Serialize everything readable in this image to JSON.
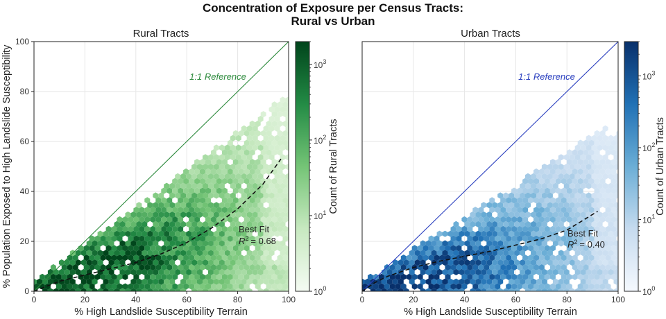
{
  "figure": {
    "title_line1": "Concentration of Exposure per Census Tracts:",
    "title_line2": "Rural vs Urban"
  },
  "chart_data": [
    {
      "type": "heatmap",
      "subtype": "hexbin",
      "title": "Rural Tracts",
      "xlabel": "% High Landslide Susceptibility Terrain",
      "ylabel": "% Population Exposed to High Landslide Susceptibility",
      "xlim": [
        0,
        100
      ],
      "ylim": [
        0,
        100
      ],
      "x_ticks": [
        "0",
        "20",
        "40",
        "60",
        "80",
        "100"
      ],
      "y_ticks": [
        "0",
        "20",
        "40",
        "60",
        "80",
        "100"
      ],
      "colormap": "Greens",
      "accent_color": "#2e8b3e",
      "colorbar": {
        "label": "Count of Rural Tracts",
        "scale": "log",
        "range": [
          1,
          2000
        ],
        "tick_values": [
          1,
          10,
          100,
          1000
        ],
        "tick_bases": [
          "10",
          "10",
          "10",
          "10"
        ],
        "tick_exponents": [
          "0",
          "1",
          "2",
          "3"
        ]
      },
      "reference_line": {
        "label": "1:1 Reference",
        "x": [
          0,
          100
        ],
        "y": [
          0,
          100
        ]
      },
      "best_fit": {
        "label": "Best Fit",
        "r2_text": "= 0.68",
        "x": [
          0,
          5,
          10,
          20,
          30,
          40,
          50,
          60,
          70,
          80,
          90,
          97
        ],
        "y": [
          0,
          2,
          4,
          6.5,
          9,
          11.5,
          15,
          19.5,
          25.5,
          33,
          43,
          53
        ]
      },
      "density_shape": {
        "center_slope": 0.3,
        "upper_slope": 0.75,
        "peak_x": 15
      },
      "grid": true
    },
    {
      "type": "heatmap",
      "subtype": "hexbin",
      "title": "Urban Tracts",
      "xlabel": "% High Landslide Susceptibility Terrain",
      "ylabel": "",
      "xlim": [
        0,
        100
      ],
      "ylim": [
        0,
        100
      ],
      "x_ticks": [
        "0",
        "20",
        "40",
        "60",
        "80",
        "100"
      ],
      "y_ticks": [],
      "colormap": "Blues",
      "accent_color": "#2a3fbf",
      "colorbar": {
        "label": "Count of Urban Tracts",
        "scale": "log",
        "range": [
          1,
          3000
        ],
        "tick_values": [
          1,
          10,
          100,
          1000
        ],
        "tick_bases": [
          "10",
          "10",
          "10",
          "10"
        ],
        "tick_exponents": [
          "0",
          "1",
          "2",
          "3"
        ]
      },
      "reference_line": {
        "label": "1:1 Reference",
        "x": [
          0,
          100
        ],
        "y": [
          0,
          100
        ]
      },
      "best_fit": {
        "label": "Best Fit",
        "r2_text": "= 0.40",
        "x": [
          0,
          5,
          10,
          20,
          30,
          40,
          50,
          60,
          70,
          80,
          92
        ],
        "y": [
          0,
          3.5,
          6,
          9.5,
          12,
          14,
          16,
          18.5,
          21,
          24.5,
          32
        ]
      },
      "density_shape": {
        "center_slope": 0.2,
        "upper_slope": 0.65,
        "peak_x": 8
      },
      "grid": true
    }
  ]
}
